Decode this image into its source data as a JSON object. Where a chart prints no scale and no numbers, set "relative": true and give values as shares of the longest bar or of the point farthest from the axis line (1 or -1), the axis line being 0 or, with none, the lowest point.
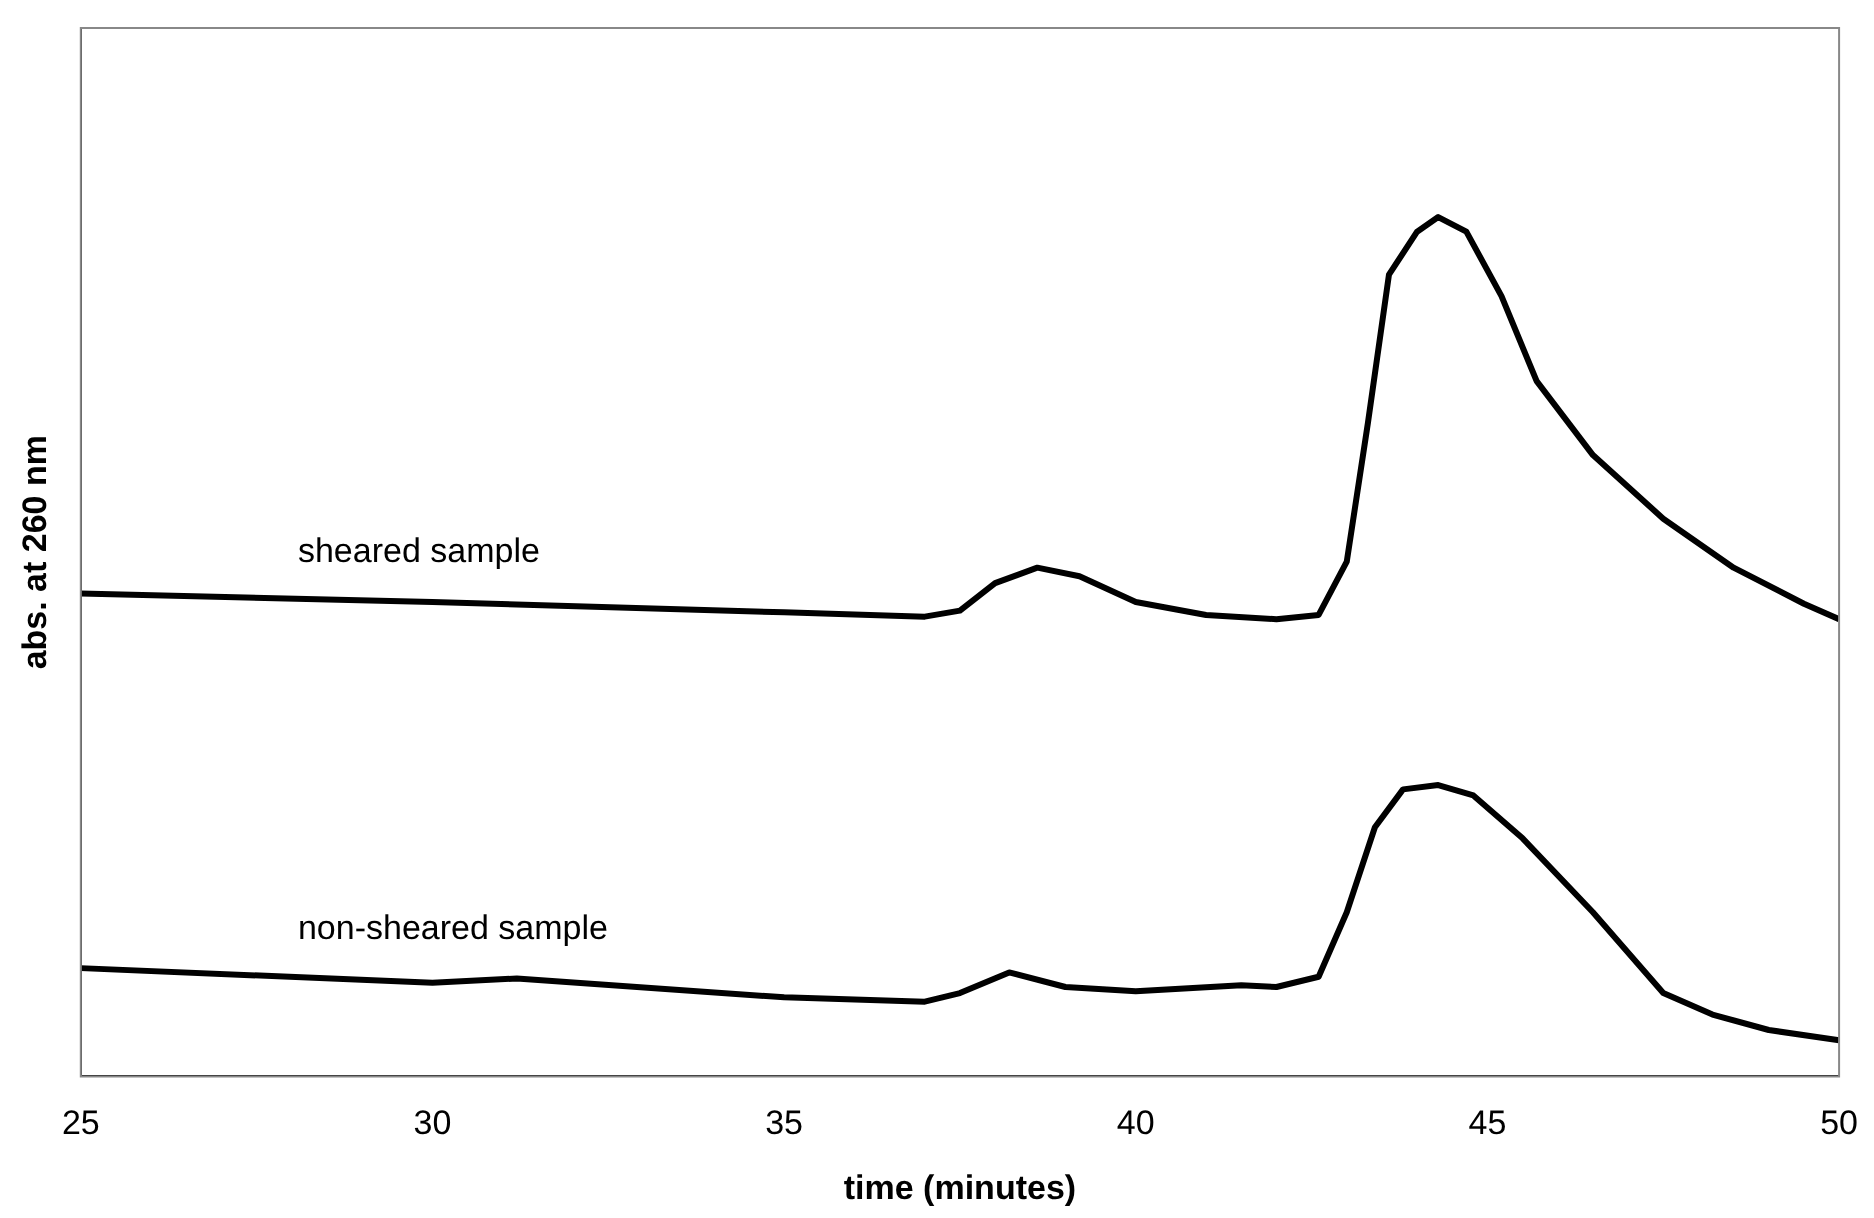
{
  "chart_data": {
    "type": "line",
    "relative": true,
    "xlabel": "time (minutes)",
    "ylabel": "abs. at 260 nm",
    "xlim": [
      25,
      50
    ],
    "xticks": [
      25,
      30,
      35,
      40,
      45,
      50
    ],
    "grid": false,
    "legend": false,
    "marker": "none",
    "line_style": "solid",
    "series": [
      {
        "name": "sheared sample",
        "color": "#000000",
        "x": [
          25,
          30,
          35,
          37,
          37.5,
          38,
          38.6,
          39.2,
          40,
          41,
          42,
          42.6,
          43,
          43.3,
          43.6,
          44,
          44.3,
          44.7,
          45.2,
          45.7,
          46.5,
          47.5,
          48.5,
          49.5,
          50
        ],
        "values": [
          0.562,
          0.552,
          0.54,
          0.535,
          0.542,
          0.574,
          0.592,
          0.582,
          0.552,
          0.537,
          0.532,
          0.537,
          0.599,
          0.76,
          0.933,
          0.983,
          1,
          0.983,
          0.908,
          0.809,
          0.723,
          0.649,
          0.592,
          0.55,
          0.532
        ]
      },
      {
        "name": "non-sheared sample",
        "color": "#000000",
        "x": [
          25,
          30,
          31.2,
          35,
          37,
          37.5,
          38.2,
          39,
          40,
          41.5,
          42,
          42.6,
          43,
          43.4,
          43.8,
          44.3,
          44.8,
          45.5,
          46.5,
          47.5,
          48.2,
          49,
          50
        ],
        "values": [
          0.126,
          0.109,
          0.114,
          0.092,
          0.087,
          0.097,
          0.121,
          0.104,
          0.099,
          0.106,
          0.104,
          0.116,
          0.191,
          0.29,
          0.334,
          0.339,
          0.327,
          0.277,
          0.191,
          0.097,
          0.072,
          0.054,
          0.042
        ]
      }
    ]
  }
}
